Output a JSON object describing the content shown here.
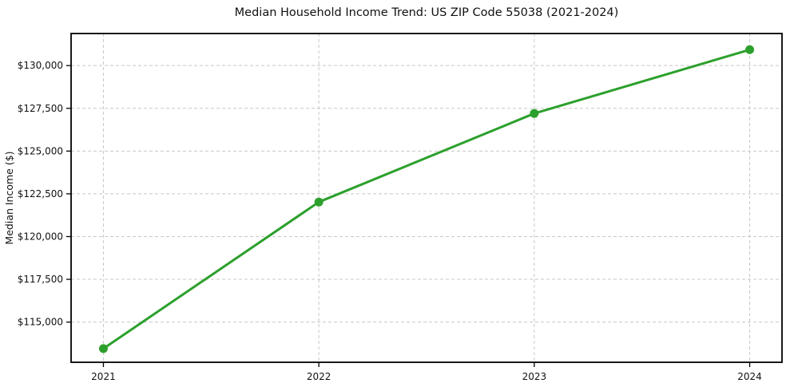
{
  "figure": {
    "background": "#ffffff"
  },
  "chart_data": {
    "type": "line",
    "title": "Median Household Income Trend: US ZIP Code 55038 (2021-2024)",
    "xlabel": "",
    "ylabel": "Median Income ($)",
    "x": [
      2021,
      2022,
      2023,
      2024
    ],
    "values": [
      113450,
      122020,
      127200,
      130930
    ],
    "xticks": [
      2021,
      2022,
      2023,
      2024
    ],
    "yticks": [
      115000,
      117500,
      120000,
      122500,
      125000,
      127500,
      130000
    ],
    "ytick_prefix": "$",
    "xlim": [
      2020.85,
      2024.15
    ],
    "ylim": [
      112650,
      131875
    ],
    "grid": true,
    "grid_style": "dashed",
    "legend": "none",
    "line_color": "#2ca02c",
    "marker": "circle",
    "marker_color": "#2ca02c",
    "grid_color": "#c8c8c8",
    "axis_color": "#000000",
    "text_color": "#111111"
  }
}
